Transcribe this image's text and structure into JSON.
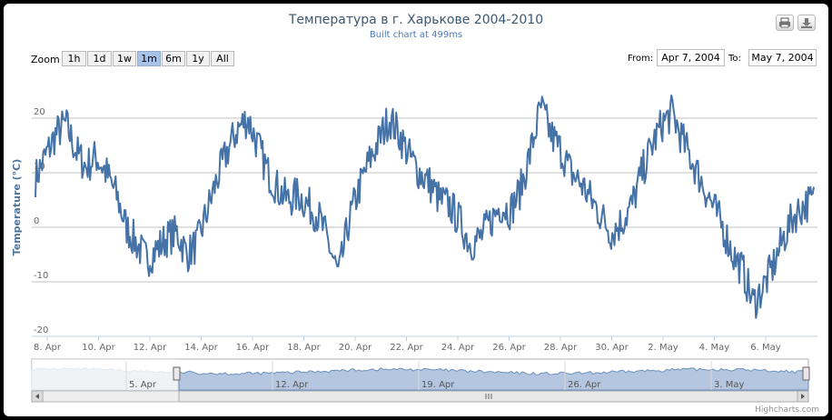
{
  "chart": {
    "title": "Температура в г. Харькове 2004-2010",
    "subtitle": "Built chart at 499ms",
    "credits": "Highcharts.com"
  },
  "zoom": {
    "label": "Zoom",
    "buttons": [
      "1h",
      "1d",
      "1w",
      "1m",
      "6m",
      "1y",
      "All"
    ],
    "selected": "1m"
  },
  "range": {
    "from_label": "From:",
    "from_value": "Apr 7, 2004",
    "to_label": "To:",
    "to_value": "May 7, 2004"
  },
  "icons": [
    "print-icon",
    "download-icon"
  ],
  "colors": {
    "series": "#4572a7",
    "navigator_fill": "#b5c7e0",
    "navigator_dim": "#e4e9ef",
    "selected_button": "#a9c2e8"
  },
  "chart_data": {
    "type": "line",
    "title": "Температура в г. Харькове 2004-2010",
    "ylabel": "Temperature (°C)",
    "xlabel": "",
    "ylim": [
      -20,
      28
    ],
    "yticks": [
      20,
      10,
      0,
      -10,
      -20
    ],
    "xticks": [
      "8. Apr",
      "10. Apr",
      "12. Apr",
      "14. Apr",
      "16. Apr",
      "18. Apr",
      "20. Apr",
      "22. Apr",
      "24. Apr",
      "26. Apr",
      "28. Apr",
      "30. Apr",
      "2. May",
      "4. May",
      "6. May"
    ],
    "x_start": "Apr 8, 2004",
    "x_end": "May 7, 2004",
    "series": [
      {
        "name": "Temperature",
        "step_hours": 6,
        "values": [
          9,
          13,
          17,
          19,
          14,
          11,
          13,
          10,
          6,
          0,
          -3,
          -6,
          -4,
          -2,
          -1,
          -5,
          -3,
          3,
          9,
          14,
          18,
          20,
          15,
          10,
          7,
          5,
          6,
          4,
          2,
          -3,
          -9,
          1,
          7,
          12,
          16,
          20,
          17,
          13,
          10,
          8,
          5,
          4,
          1,
          -3,
          -2,
          1,
          4,
          3,
          7,
          14,
          22,
          17,
          14,
          10,
          8,
          5,
          2,
          -1,
          1,
          4,
          10,
          15,
          19,
          21,
          16,
          12,
          8,
          4,
          0,
          -5,
          -8,
          -14,
          -11,
          -7,
          -2,
          2,
          4,
          5
        ]
      }
    ],
    "navigator": {
      "xticks": [
        "5. Apr",
        "12. Apr",
        "19. Apr",
        "26. Apr",
        "3. May"
      ]
    }
  }
}
